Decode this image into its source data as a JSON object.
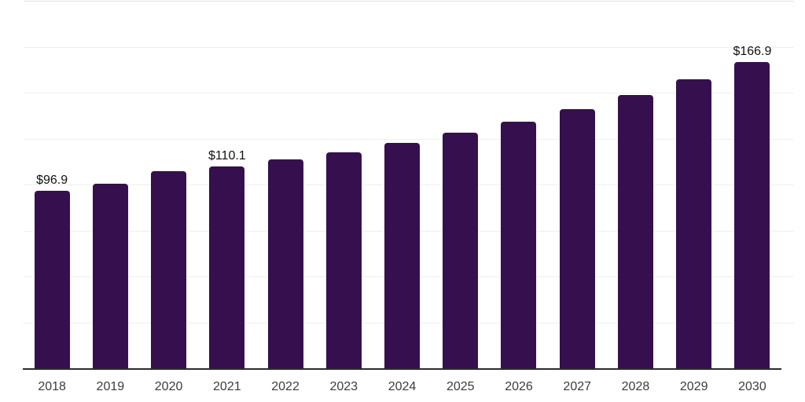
{
  "page": {
    "background": "#ffffff"
  },
  "chart_data": {
    "type": "bar",
    "categories": [
      "2018",
      "2019",
      "2020",
      "2021",
      "2022",
      "2023",
      "2024",
      "2025",
      "2026",
      "2027",
      "2028",
      "2029",
      "2030"
    ],
    "values": [
      96.9,
      100.7,
      107.5,
      110.1,
      114.0,
      118.0,
      122.9,
      128.6,
      134.7,
      141.6,
      149.1,
      157.8,
      166.9
    ],
    "data_labels": [
      "$96.9",
      null,
      null,
      "$110.1",
      null,
      null,
      null,
      null,
      null,
      null,
      null,
      null,
      "$166.9"
    ],
    "value_prefix": "$",
    "ylim": [
      0,
      200
    ],
    "grid_step": 25,
    "grid_on": true,
    "y_axis_tick_labels_visible": false,
    "legend_visible": false,
    "colors": {
      "bar": "#36104e",
      "axis_line": "#2b2b2b",
      "gridline": "#efefef",
      "plot_top_border": "#e0e0e0",
      "tick_label": "#3c3c3c",
      "data_label": "#111111",
      "background": "#ffffff"
    }
  }
}
